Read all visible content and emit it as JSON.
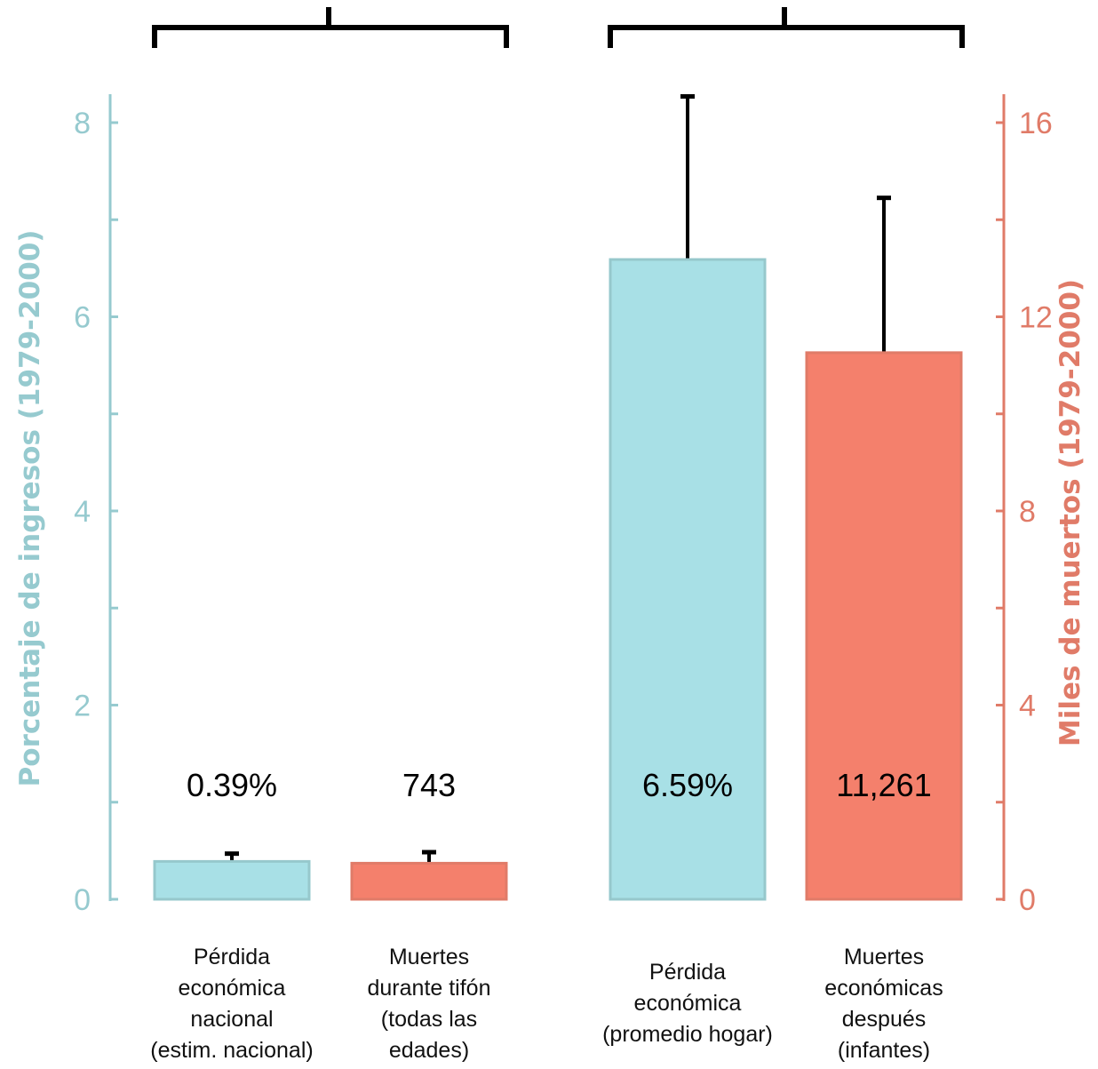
{
  "chart_data": {
    "type": "bar",
    "title": "",
    "colors": {
      "left_axis": "#96CACF",
      "right_axis": "#E07B68",
      "bar_income": "#A8E0E6",
      "bar_income_edge": "#96C8CC",
      "bar_deaths": "#F4806C",
      "bar_deaths_edge": "#E07B68"
    },
    "y_left": {
      "label": "Porcentaje de ingresos (1979-2000)",
      "ylim": [
        0,
        8
      ],
      "ticks": [
        "0",
        "2",
        "4",
        "6",
        "8"
      ]
    },
    "y_right": {
      "label": "Miles de muertos (1979-2000)",
      "ylim": [
        0,
        16
      ],
      "ticks": [
        "0",
        "4",
        "8",
        "12",
        "16"
      ]
    },
    "bars": [
      {
        "category": [
          "Pérdida",
          "económica",
          "nacional",
          "(estim. nacional)"
        ],
        "axis": "left",
        "value": 0.39,
        "error_upper": 0.47,
        "label": "0.39%",
        "color": "bar_income",
        "group": 0
      },
      {
        "category": [
          "Muertes",
          "durante tifón",
          "(todas las",
          "edades)"
        ],
        "axis": "right",
        "value": 0.743,
        "error_upper": 0.97,
        "label": "743",
        "color": "bar_deaths",
        "group": 0
      },
      {
        "category": [
          "Pérdida",
          "económica",
          "(promedio hogar)"
        ],
        "axis": "left",
        "value": 6.59,
        "error_upper": 8.27,
        "label": "6.59%",
        "color": "bar_income",
        "group": 1
      },
      {
        "category": [
          "Muertes",
          "económicas",
          "después",
          "(infantes)"
        ],
        "axis": "right",
        "value": 11.261,
        "error_upper": 14.45,
        "label": "11,261",
        "color": "bar_deaths",
        "group": 1
      }
    ],
    "groups": 2,
    "grid": false,
    "legend": "none"
  }
}
